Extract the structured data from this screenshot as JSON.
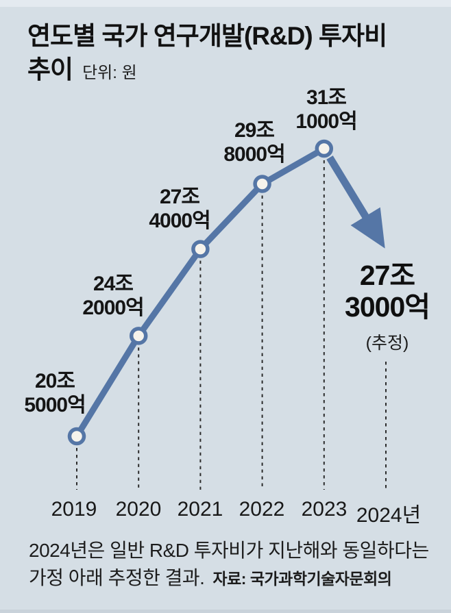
{
  "header": {
    "title_line1": "연도별 국가 연구개발(R&D) 투자비",
    "title_line2": "추이",
    "unit": "단위: 원"
  },
  "chart_data": {
    "type": "line",
    "title": "연도별 국가 연구개발(R&D) 투자비 추이",
    "unit": "원",
    "categories": [
      "2019",
      "2020",
      "2021",
      "2022",
      "2023",
      "2024년"
    ],
    "values_trillion_won": [
      20.5,
      24.2,
      27.4,
      29.8,
      31.1,
      27.3
    ],
    "point_labels": [
      [
        "20조",
        "5000억"
      ],
      [
        "24조",
        "2000억"
      ],
      [
        "27조",
        "4000억"
      ],
      [
        "29조",
        "8000억"
      ],
      [
        "31조",
        "1000억"
      ]
    ],
    "estimate_label": [
      "27조",
      "3000억"
    ],
    "estimate_note": "(추정)",
    "estimated_category": "2024년",
    "legend": "none",
    "grid": "dashed vertical drop lines per year",
    "ylim": [
      20,
      32
    ],
    "colors": {
      "line": "#5576a6",
      "marker_fill": "#f6f3ec",
      "dash": "#2b2b2b",
      "background": "#d5dee5",
      "text": "#111111"
    }
  },
  "footer": {
    "note_line1": "2024년은 일반 R&D 투자비가 지난해와 동일하다는",
    "note_line2": "가정 아래 추정한 결과.",
    "source": "자료: 국가과학기술자문회의"
  }
}
